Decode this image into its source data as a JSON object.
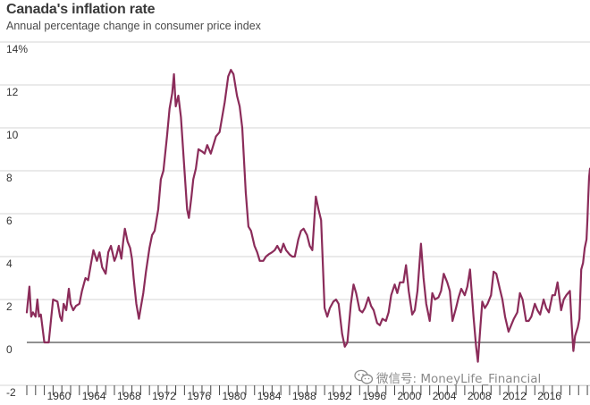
{
  "title": "Canada's inflation rate",
  "subtitle": "Annual percentage change in consumer price index",
  "watermark": {
    "icon": "wechat-icon",
    "text": "微信号: MoneyLife_Financial"
  },
  "colors": {
    "line": "#8b2c5a",
    "grid": "#d4d4d4",
    "zero_line": "#222222",
    "axis_text": "#333333"
  },
  "chart_data": {
    "type": "line",
    "title": "Canada's inflation rate",
    "subtitle": "Annual percentage change in consumer price index",
    "xlabel": "",
    "ylabel": "",
    "xlim": [
      1958.0,
      2022.3
    ],
    "ylim": [
      -2,
      14
    ],
    "y_ticks": [
      -2,
      0,
      2,
      4,
      6,
      8,
      10,
      12,
      14
    ],
    "y_tick_labels": [
      "-2",
      "0",
      "2",
      "4",
      "6",
      "8",
      "10",
      "12",
      "14%"
    ],
    "x_ticks": [
      1960,
      1964,
      1968,
      1972,
      1976,
      1980,
      1984,
      1988,
      1992,
      1996,
      2000,
      2004,
      2008,
      2012,
      2016
    ],
    "x_tick_labels": [
      "1960",
      "1964",
      "1968",
      "1972",
      "1976",
      "1980",
      "1984",
      "1988",
      "1992",
      "1996",
      "2000",
      "2004",
      "2008",
      "2012",
      "2016"
    ],
    "grid": "horizontal",
    "series": [
      {
        "color": "#8b2c5a",
        "points": [
          [
            1958.0,
            1.4
          ],
          [
            1958.3,
            2.6
          ],
          [
            1958.5,
            1.2
          ],
          [
            1958.7,
            1.4
          ],
          [
            1959.0,
            1.2
          ],
          [
            1959.2,
            2.0
          ],
          [
            1959.4,
            1.2
          ],
          [
            1959.6,
            1.3
          ],
          [
            1960.0,
            0.0
          ],
          [
            1960.5,
            0.0
          ],
          [
            1960.8,
            1.2
          ],
          [
            1961.0,
            2.0
          ],
          [
            1961.5,
            1.9
          ],
          [
            1961.8,
            1.2
          ],
          [
            1962.0,
            1.0
          ],
          [
            1962.2,
            1.8
          ],
          [
            1962.5,
            1.5
          ],
          [
            1962.8,
            2.5
          ],
          [
            1963.0,
            1.8
          ],
          [
            1963.3,
            1.5
          ],
          [
            1963.6,
            1.7
          ],
          [
            1964.0,
            1.8
          ],
          [
            1964.3,
            2.4
          ],
          [
            1964.7,
            3.0
          ],
          [
            1965.0,
            2.9
          ],
          [
            1965.3,
            3.6
          ],
          [
            1965.6,
            4.3
          ],
          [
            1966.0,
            3.8
          ],
          [
            1966.3,
            4.2
          ],
          [
            1966.6,
            3.5
          ],
          [
            1967.0,
            3.2
          ],
          [
            1967.3,
            4.2
          ],
          [
            1967.6,
            4.5
          ],
          [
            1968.0,
            3.8
          ],
          [
            1968.2,
            4.0
          ],
          [
            1968.5,
            4.5
          ],
          [
            1968.8,
            3.9
          ],
          [
            1969.0,
            4.7
          ],
          [
            1969.2,
            5.3
          ],
          [
            1969.5,
            4.7
          ],
          [
            1969.8,
            4.4
          ],
          [
            1970.0,
            3.9
          ],
          [
            1970.2,
            3.0
          ],
          [
            1970.5,
            1.8
          ],
          [
            1970.8,
            1.1
          ],
          [
            1971.0,
            1.6
          ],
          [
            1971.3,
            2.3
          ],
          [
            1971.6,
            3.3
          ],
          [
            1972.0,
            4.4
          ],
          [
            1972.3,
            5.0
          ],
          [
            1972.6,
            5.2
          ],
          [
            1973.0,
            6.2
          ],
          [
            1973.3,
            7.6
          ],
          [
            1973.6,
            8.0
          ],
          [
            1974.0,
            9.6
          ],
          [
            1974.3,
            10.9
          ],
          [
            1974.6,
            11.6
          ],
          [
            1974.8,
            12.5
          ],
          [
            1975.0,
            11.0
          ],
          [
            1975.3,
            11.5
          ],
          [
            1975.6,
            10.5
          ],
          [
            1976.0,
            8.0
          ],
          [
            1976.3,
            6.2
          ],
          [
            1976.5,
            5.8
          ],
          [
            1976.8,
            6.8
          ],
          [
            1977.0,
            7.6
          ],
          [
            1977.3,
            8.1
          ],
          [
            1977.6,
            9.0
          ],
          [
            1978.0,
            8.9
          ],
          [
            1978.3,
            8.8
          ],
          [
            1978.6,
            9.2
          ],
          [
            1979.0,
            8.8
          ],
          [
            1979.3,
            9.2
          ],
          [
            1979.6,
            9.6
          ],
          [
            1980.0,
            9.8
          ],
          [
            1980.3,
            10.5
          ],
          [
            1980.6,
            11.2
          ],
          [
            1981.0,
            12.4
          ],
          [
            1981.3,
            12.7
          ],
          [
            1981.6,
            12.5
          ],
          [
            1982.0,
            11.5
          ],
          [
            1982.3,
            11.0
          ],
          [
            1982.6,
            10.0
          ],
          [
            1983.0,
            7.0
          ],
          [
            1983.3,
            5.4
          ],
          [
            1983.6,
            5.2
          ],
          [
            1984.0,
            4.5
          ],
          [
            1984.3,
            4.2
          ],
          [
            1984.6,
            3.8
          ],
          [
            1985.0,
            3.8
          ],
          [
            1985.3,
            4.0
          ],
          [
            1985.6,
            4.1
          ],
          [
            1986.0,
            4.2
          ],
          [
            1986.3,
            4.3
          ],
          [
            1986.6,
            4.5
          ],
          [
            1987.0,
            4.2
          ],
          [
            1987.3,
            4.6
          ],
          [
            1987.6,
            4.3
          ],
          [
            1988.0,
            4.1
          ],
          [
            1988.3,
            4.0
          ],
          [
            1988.6,
            4.0
          ],
          [
            1989.0,
            4.8
          ],
          [
            1989.3,
            5.2
          ],
          [
            1989.6,
            5.3
          ],
          [
            1990.0,
            5.0
          ],
          [
            1990.3,
            4.5
          ],
          [
            1990.6,
            4.3
          ],
          [
            1991.0,
            6.8
          ],
          [
            1991.3,
            6.2
          ],
          [
            1991.6,
            5.7
          ],
          [
            1992.0,
            1.6
          ],
          [
            1992.3,
            1.2
          ],
          [
            1992.6,
            1.6
          ],
          [
            1993.0,
            1.9
          ],
          [
            1993.3,
            2.0
          ],
          [
            1993.6,
            1.8
          ],
          [
            1994.0,
            0.4
          ],
          [
            1994.3,
            -0.2
          ],
          [
            1994.6,
            0.0
          ],
          [
            1995.0,
            1.8
          ],
          [
            1995.3,
            2.7
          ],
          [
            1995.6,
            2.3
          ],
          [
            1996.0,
            1.5
          ],
          [
            1996.3,
            1.4
          ],
          [
            1996.6,
            1.6
          ],
          [
            1997.0,
            2.1
          ],
          [
            1997.3,
            1.7
          ],
          [
            1997.6,
            1.5
          ],
          [
            1998.0,
            0.9
          ],
          [
            1998.3,
            0.8
          ],
          [
            1998.6,
            1.1
          ],
          [
            1999.0,
            1.0
          ],
          [
            1999.3,
            1.4
          ],
          [
            1999.6,
            2.2
          ],
          [
            2000.0,
            2.7
          ],
          [
            2000.3,
            2.3
          ],
          [
            2000.6,
            2.8
          ],
          [
            2001.0,
            2.8
          ],
          [
            2001.3,
            3.6
          ],
          [
            2001.6,
            2.4
          ],
          [
            2002.0,
            1.3
          ],
          [
            2002.3,
            1.5
          ],
          [
            2002.6,
            2.4
          ],
          [
            2003.0,
            4.6
          ],
          [
            2003.3,
            3.0
          ],
          [
            2003.6,
            1.8
          ],
          [
            2004.0,
            1.0
          ],
          [
            2004.3,
            2.3
          ],
          [
            2004.6,
            2.0
          ],
          [
            2005.0,
            2.1
          ],
          [
            2005.3,
            2.4
          ],
          [
            2005.6,
            3.2
          ],
          [
            2006.0,
            2.8
          ],
          [
            2006.3,
            2.4
          ],
          [
            2006.6,
            1.0
          ],
          [
            2007.0,
            1.6
          ],
          [
            2007.3,
            2.1
          ],
          [
            2007.6,
            2.5
          ],
          [
            2008.0,
            2.2
          ],
          [
            2008.3,
            2.6
          ],
          [
            2008.6,
            3.4
          ],
          [
            2009.0,
            1.2
          ],
          [
            2009.3,
            -0.2
          ],
          [
            2009.5,
            -0.9
          ],
          [
            2009.8,
            0.8
          ],
          [
            2010.0,
            1.9
          ],
          [
            2010.3,
            1.6
          ],
          [
            2010.6,
            1.8
          ],
          [
            2011.0,
            2.2
          ],
          [
            2011.3,
            3.3
          ],
          [
            2011.6,
            3.2
          ],
          [
            2012.0,
            2.5
          ],
          [
            2012.3,
            2.0
          ],
          [
            2012.6,
            1.2
          ],
          [
            2013.0,
            0.5
          ],
          [
            2013.3,
            0.8
          ],
          [
            2013.6,
            1.1
          ],
          [
            2014.0,
            1.4
          ],
          [
            2014.3,
            2.3
          ],
          [
            2014.6,
            2.0
          ],
          [
            2015.0,
            1.0
          ],
          [
            2015.3,
            1.0
          ],
          [
            2015.6,
            1.2
          ],
          [
            2016.0,
            1.8
          ],
          [
            2016.3,
            1.5
          ],
          [
            2016.6,
            1.3
          ],
          [
            2017.0,
            2.0
          ],
          [
            2017.3,
            1.6
          ],
          [
            2017.6,
            1.4
          ],
          [
            2018.0,
            2.2
          ],
          [
            2018.3,
            2.2
          ],
          [
            2018.6,
            2.8
          ],
          [
            2019.0,
            1.5
          ],
          [
            2019.3,
            2.0
          ],
          [
            2019.6,
            2.2
          ],
          [
            2020.0,
            2.4
          ],
          [
            2020.2,
            0.9
          ],
          [
            2020.4,
            -0.4
          ],
          [
            2020.6,
            0.3
          ],
          [
            2020.9,
            0.7
          ],
          [
            2021.1,
            1.1
          ],
          [
            2021.3,
            3.4
          ],
          [
            2021.5,
            3.7
          ],
          [
            2021.7,
            4.4
          ],
          [
            2021.9,
            4.8
          ],
          [
            2022.0,
            5.7
          ],
          [
            2022.1,
            6.7
          ],
          [
            2022.2,
            7.7
          ],
          [
            2022.3,
            8.1
          ]
        ]
      }
    ]
  }
}
